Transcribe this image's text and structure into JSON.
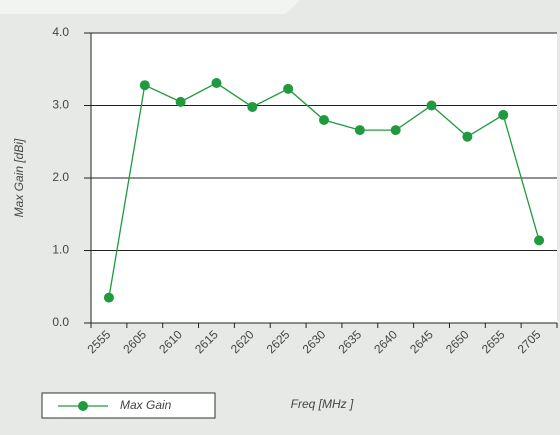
{
  "chart_data": {
    "type": "line",
    "y_label": "Max Gain [dBi]",
    "x_label": "Freq [MHz ]",
    "categories": [
      "2555",
      "2605",
      "2610",
      "2615",
      "2620",
      "2625",
      "2630",
      "2635",
      "2640",
      "2645",
      "2650",
      "2655",
      "2705"
    ],
    "series": [
      {
        "name": "Max Gain",
        "color": "#1f9a3e",
        "values": [
          0.35,
          3.28,
          3.05,
          3.31,
          2.98,
          3.23,
          2.8,
          2.66,
          2.66,
          3.0,
          2.57,
          2.87,
          1.14
        ]
      }
    ],
    "ylim": [
      0,
      4
    ],
    "yticks": [
      {
        "value": 0,
        "label": "0.0"
      },
      {
        "value": 1,
        "label": "1.0"
      },
      {
        "value": 2,
        "label": "2.0"
      },
      {
        "value": 3,
        "label": "3.0"
      },
      {
        "value": 4,
        "label": "4.0"
      }
    ],
    "grid": true
  }
}
